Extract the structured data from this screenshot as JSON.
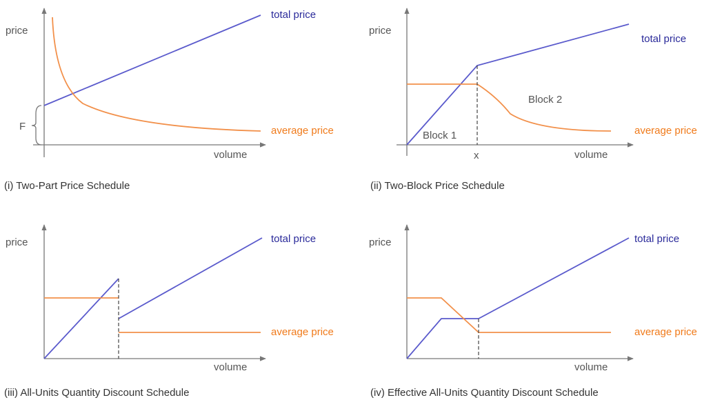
{
  "panels": [
    {
      "y_label": "price",
      "x_label": "volume",
      "total_label": "total price",
      "average_label": "average price",
      "annotations": [
        "F"
      ],
      "caption": "(i) Two-Part Price Schedule"
    },
    {
      "y_label": "price",
      "x_label": "volume",
      "total_label": "total price",
      "average_label": "average price",
      "annotations": [
        "Block 1",
        "Block 2",
        "x"
      ],
      "caption": "(ii) Two-Block Price Schedule"
    },
    {
      "y_label": "price",
      "x_label": "volume",
      "total_label": "total price",
      "average_label": "average price",
      "annotations": [],
      "caption": "(iii) All-Units Quantity Discount Schedule"
    },
    {
      "y_label": "price",
      "x_label": "volume",
      "total_label": "total price",
      "average_label": "average price",
      "annotations": [],
      "caption": "(iv) Effective All-Units Quantity Discount Schedule"
    }
  ]
}
